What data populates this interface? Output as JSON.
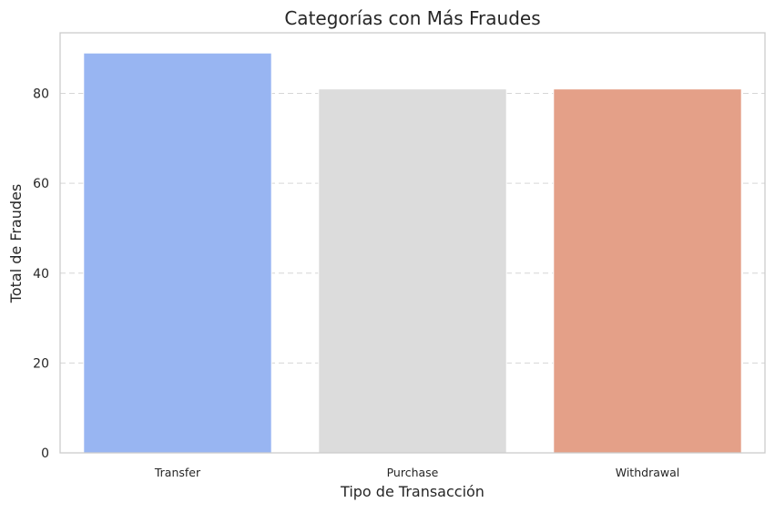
{
  "chart_data": {
    "type": "bar",
    "title": "Categorías con Más Fraudes",
    "xlabel": "Tipo de Transacción",
    "ylabel": "Total de Fraudes",
    "categories": [
      "Transfer",
      "Purchase",
      "Withdrawal"
    ],
    "values": [
      89,
      81,
      81
    ],
    "colors": [
      "#98b5f2",
      "#dcdcdc",
      "#e4a088"
    ],
    "ylim": [
      0,
      93.5
    ],
    "yticks": [
      0,
      20,
      40,
      60,
      80
    ],
    "grid": "y-dashed",
    "legend": "none"
  }
}
